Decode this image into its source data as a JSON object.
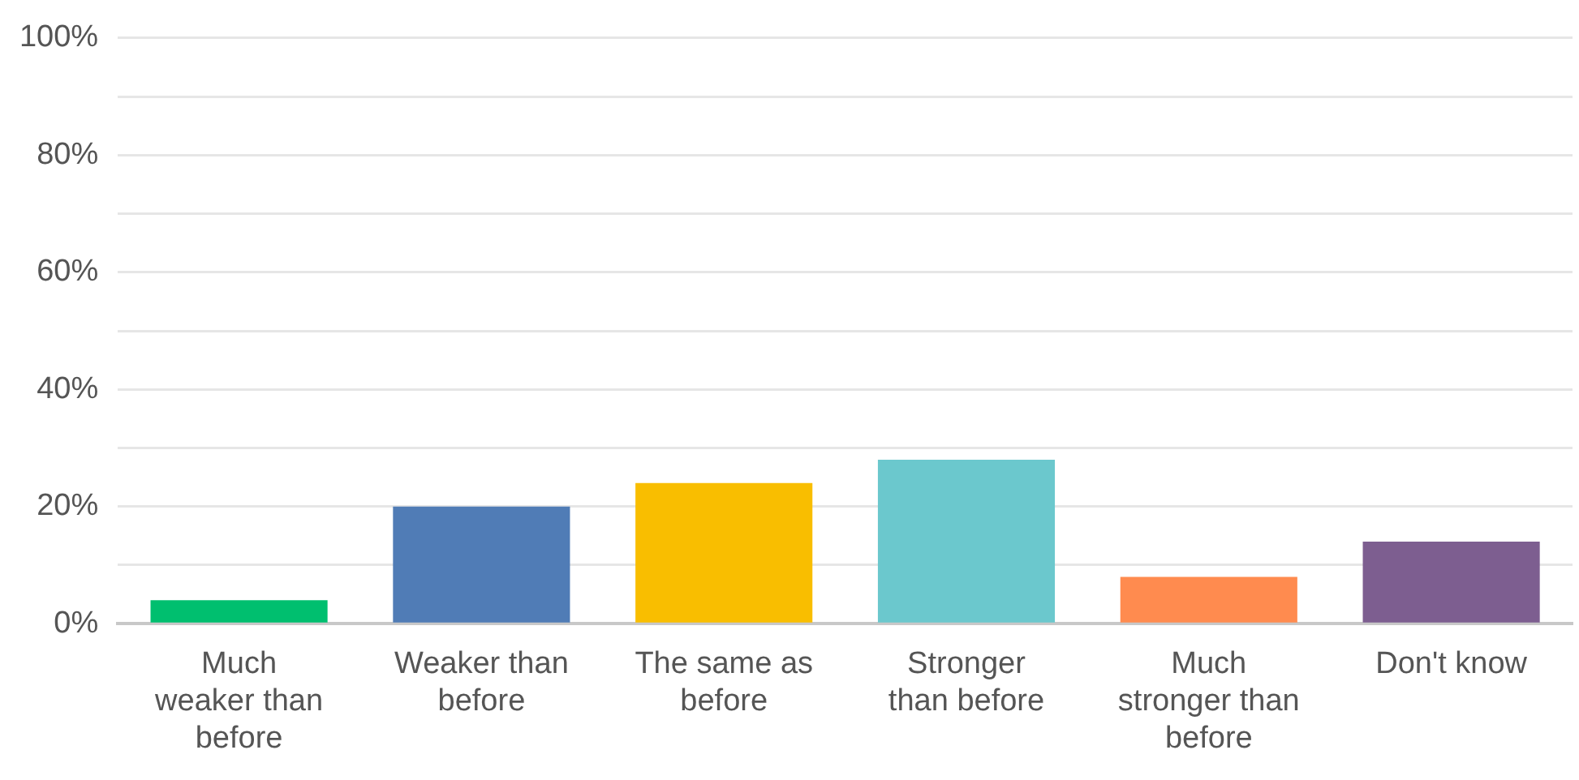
{
  "chart_data": {
    "type": "bar",
    "categories": [
      "Much weaker than before",
      "Weaker than before",
      "The same as before",
      "Stronger than before",
      "Much stronger than before",
      "Don't know"
    ],
    "values": [
      4,
      20,
      24,
      28,
      8,
      14
    ],
    "colors": [
      "#00bf6f",
      "#507cb6",
      "#f9be00",
      "#6bc8cd",
      "#ff8b4f",
      "#7d5e90"
    ],
    "ylim": [
      0,
      100
    ],
    "yticks": [
      {
        "value": 0,
        "label": "0%"
      },
      {
        "value": 10,
        "label": null
      },
      {
        "value": 20,
        "label": "20%"
      },
      {
        "value": 30,
        "label": null
      },
      {
        "value": 40,
        "label": "40%"
      },
      {
        "value": 50,
        "label": null
      },
      {
        "value": 60,
        "label": "60%"
      },
      {
        "value": 70,
        "label": null
      },
      {
        "value": 80,
        "label": "80%"
      },
      {
        "value": 90,
        "label": null
      },
      {
        "value": 100,
        "label": "100%"
      }
    ],
    "grid": "y"
  }
}
